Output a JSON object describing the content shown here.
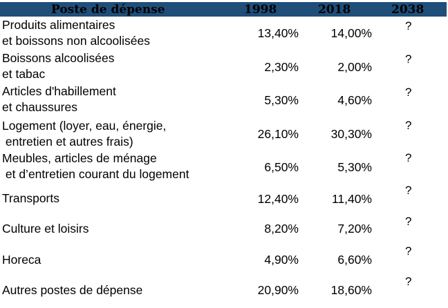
{
  "table": {
    "headers": [
      "Poste de dépense",
      "1998",
      "2018",
      "2038"
    ],
    "rows": [
      {
        "label_lines": [
          "Produits alimentaires",
          "et boissons non alcoolisées"
        ],
        "v1998": "13,40%",
        "v2018": "14,00%",
        "v2038": "?"
      },
      {
        "label_lines": [
          "Boissons alcoolisées",
          "et tabac"
        ],
        "v1998": "2,30%",
        "v2018": "2,00%",
        "v2038": "?"
      },
      {
        "label_lines": [
          "Articles d'habillement",
          "et chaussures"
        ],
        "v1998": "5,30%",
        "v2018": "4,60%",
        "v2038": "?"
      },
      {
        "label_lines": [
          "Logement (loyer, eau, énergie,",
          " entretien et autres frais)"
        ],
        "v1998": "26,10%",
        "v2018": "30,30%",
        "v2038": "?"
      },
      {
        "label_lines": [
          "Meubles, articles de ménage",
          " et d’entretien courant du logement"
        ],
        "v1998": "6,50%",
        "v2018": "5,30%",
        "v2038": "?"
      },
      {
        "label_lines": [
          "Transports"
        ],
        "v1998": "12,40%",
        "v2018": "11,40%",
        "v2038": "?"
      },
      {
        "label_lines": [
          "Culture et loisirs"
        ],
        "v1998": "8,20%",
        "v2018": "7,20%",
        "v2038": "?"
      },
      {
        "label_lines": [
          "Horeca"
        ],
        "v1998": "4,90%",
        "v2018": "6,60%",
        "v2038": "?"
      },
      {
        "label_lines": [
          "Autres postes de dépense"
        ],
        "v1998": "20,90%",
        "v2018": "18,60%",
        "v2038": "?"
      }
    ]
  },
  "colors": {
    "header_bg": "#1f4e79",
    "text": "#000000"
  }
}
